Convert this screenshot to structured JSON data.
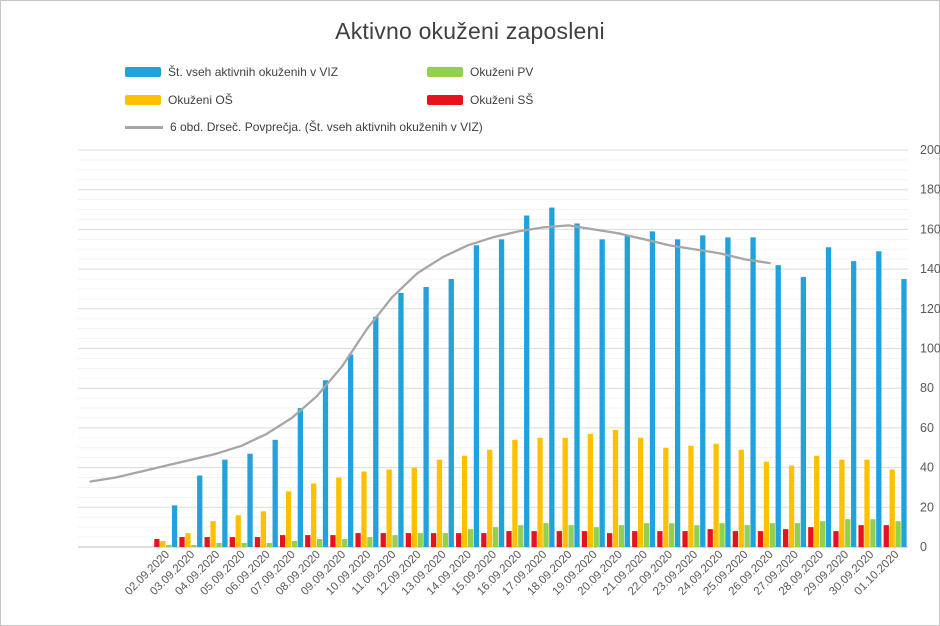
{
  "window": {
    "background": "#ffffff",
    "frame_color": "#c5c5c5"
  },
  "title": "Aktivno okuženi zaposleni",
  "chart_data": {
    "type": "bar+line",
    "title": "Aktivno okuženi zaposleni",
    "categories": [
      "02.09.2020",
      "03.09.2020",
      "04.09.2020",
      "05.09.2020",
      "06.09.2020",
      "07.09.2020",
      "08.09.2020",
      "09.09.2020",
      "10.09.2020",
      "11.09.2020",
      "12.09.2020",
      "13.09.2020",
      "14.09.2020",
      "15.09.2020",
      "16.09.2020",
      "17.09.2020",
      "18.09.2020",
      "19.09.2020",
      "20.09.2020",
      "21.09.2020",
      "22.09.2020",
      "23.09.2020",
      "24.09.2020",
      "25.09.2020",
      "26.09.2020",
      "27.09.2020",
      "28.09.2020",
      "29.09.2020",
      "30.09.2020",
      "01.10.2020"
    ],
    "series": [
      {
        "name": "Okuženi SŠ",
        "color": "#e8121d",
        "values": [
          4,
          5,
          5,
          5,
          5,
          6,
          6,
          6,
          7,
          7,
          7,
          7,
          7,
          7,
          8,
          8,
          8,
          8,
          7,
          8,
          8,
          8,
          9,
          8,
          8,
          9,
          10,
          8,
          11,
          11
        ]
      },
      {
        "name": "Okuženi OŠ",
        "color": "#ffc000",
        "values": [
          3,
          7,
          13,
          16,
          18,
          28,
          32,
          35,
          38,
          39,
          40,
          44,
          46,
          49,
          54,
          55,
          55,
          57,
          59,
          55,
          50,
          51,
          52,
          49,
          43,
          41,
          46,
          44,
          44,
          39
        ]
      },
      {
        "name": "Okuženi PV",
        "color": "#92d050",
        "values": [
          1,
          1,
          2,
          2,
          2,
          3,
          4,
          4,
          5,
          6,
          7,
          7,
          9,
          10,
          11,
          12,
          11,
          10,
          11,
          12,
          12,
          11,
          12,
          11,
          12,
          12,
          13,
          14,
          14,
          13
        ]
      },
      {
        "name": "Št. vseh aktivnih okuženih v VIZ",
        "color": "#22a2dc",
        "values": [
          21,
          36,
          44,
          47,
          54,
          70,
          84,
          97,
          116,
          128,
          131,
          135,
          152,
          155,
          167,
          171,
          163,
          155,
          157,
          159,
          155,
          157,
          156,
          156,
          142,
          136,
          151,
          144,
          149,
          135
        ]
      }
    ],
    "moving_average": {
      "name": "6 obd. Drseč. Povprečja. (Št. vseh aktivnih okuženih v VIZ)",
      "color": "#a6a6a6",
      "lead_in_values": [
        33,
        35,
        38
      ],
      "values": [
        41,
        44,
        47,
        51,
        57,
        65,
        76,
        91,
        110,
        126,
        138,
        146,
        152,
        156,
        159,
        161,
        162,
        160,
        158,
        155,
        152,
        150,
        148,
        145,
        143,
        null,
        null,
        null,
        null,
        null
      ]
    },
    "y_axis": {
      "min": 0,
      "max": 200,
      "step": 20,
      "side": "right",
      "tick_labels": [
        "0",
        "20",
        "40",
        "60",
        "80",
        "100",
        "120",
        "140",
        "160",
        "180",
        "200"
      ]
    },
    "x_axis": {
      "label_rotation_deg": -45
    },
    "grid": {
      "minor_step": 5,
      "minor_color": "#f3f3f3",
      "major_color": "#dcdcdc",
      "axis_color": "#c9c9c9"
    },
    "legend": {
      "position": "top-left",
      "items": [
        {
          "label": "Št. vseh aktivnih okuženih v VIZ",
          "color": "#22a2dc",
          "type": "bar"
        },
        {
          "label": "Okuženi PV",
          "color": "#92d050",
          "type": "bar"
        },
        {
          "label": "Okuženi OŠ",
          "color": "#ffc000",
          "type": "bar"
        },
        {
          "label": "Okuženi SŠ",
          "color": "#e8121d",
          "type": "bar"
        },
        {
          "label": "6 obd. Drseč. Povprečja. (Št. vseh aktivnih okuženih v VIZ)",
          "color": "#a6a6a6",
          "type": "line"
        }
      ]
    }
  }
}
